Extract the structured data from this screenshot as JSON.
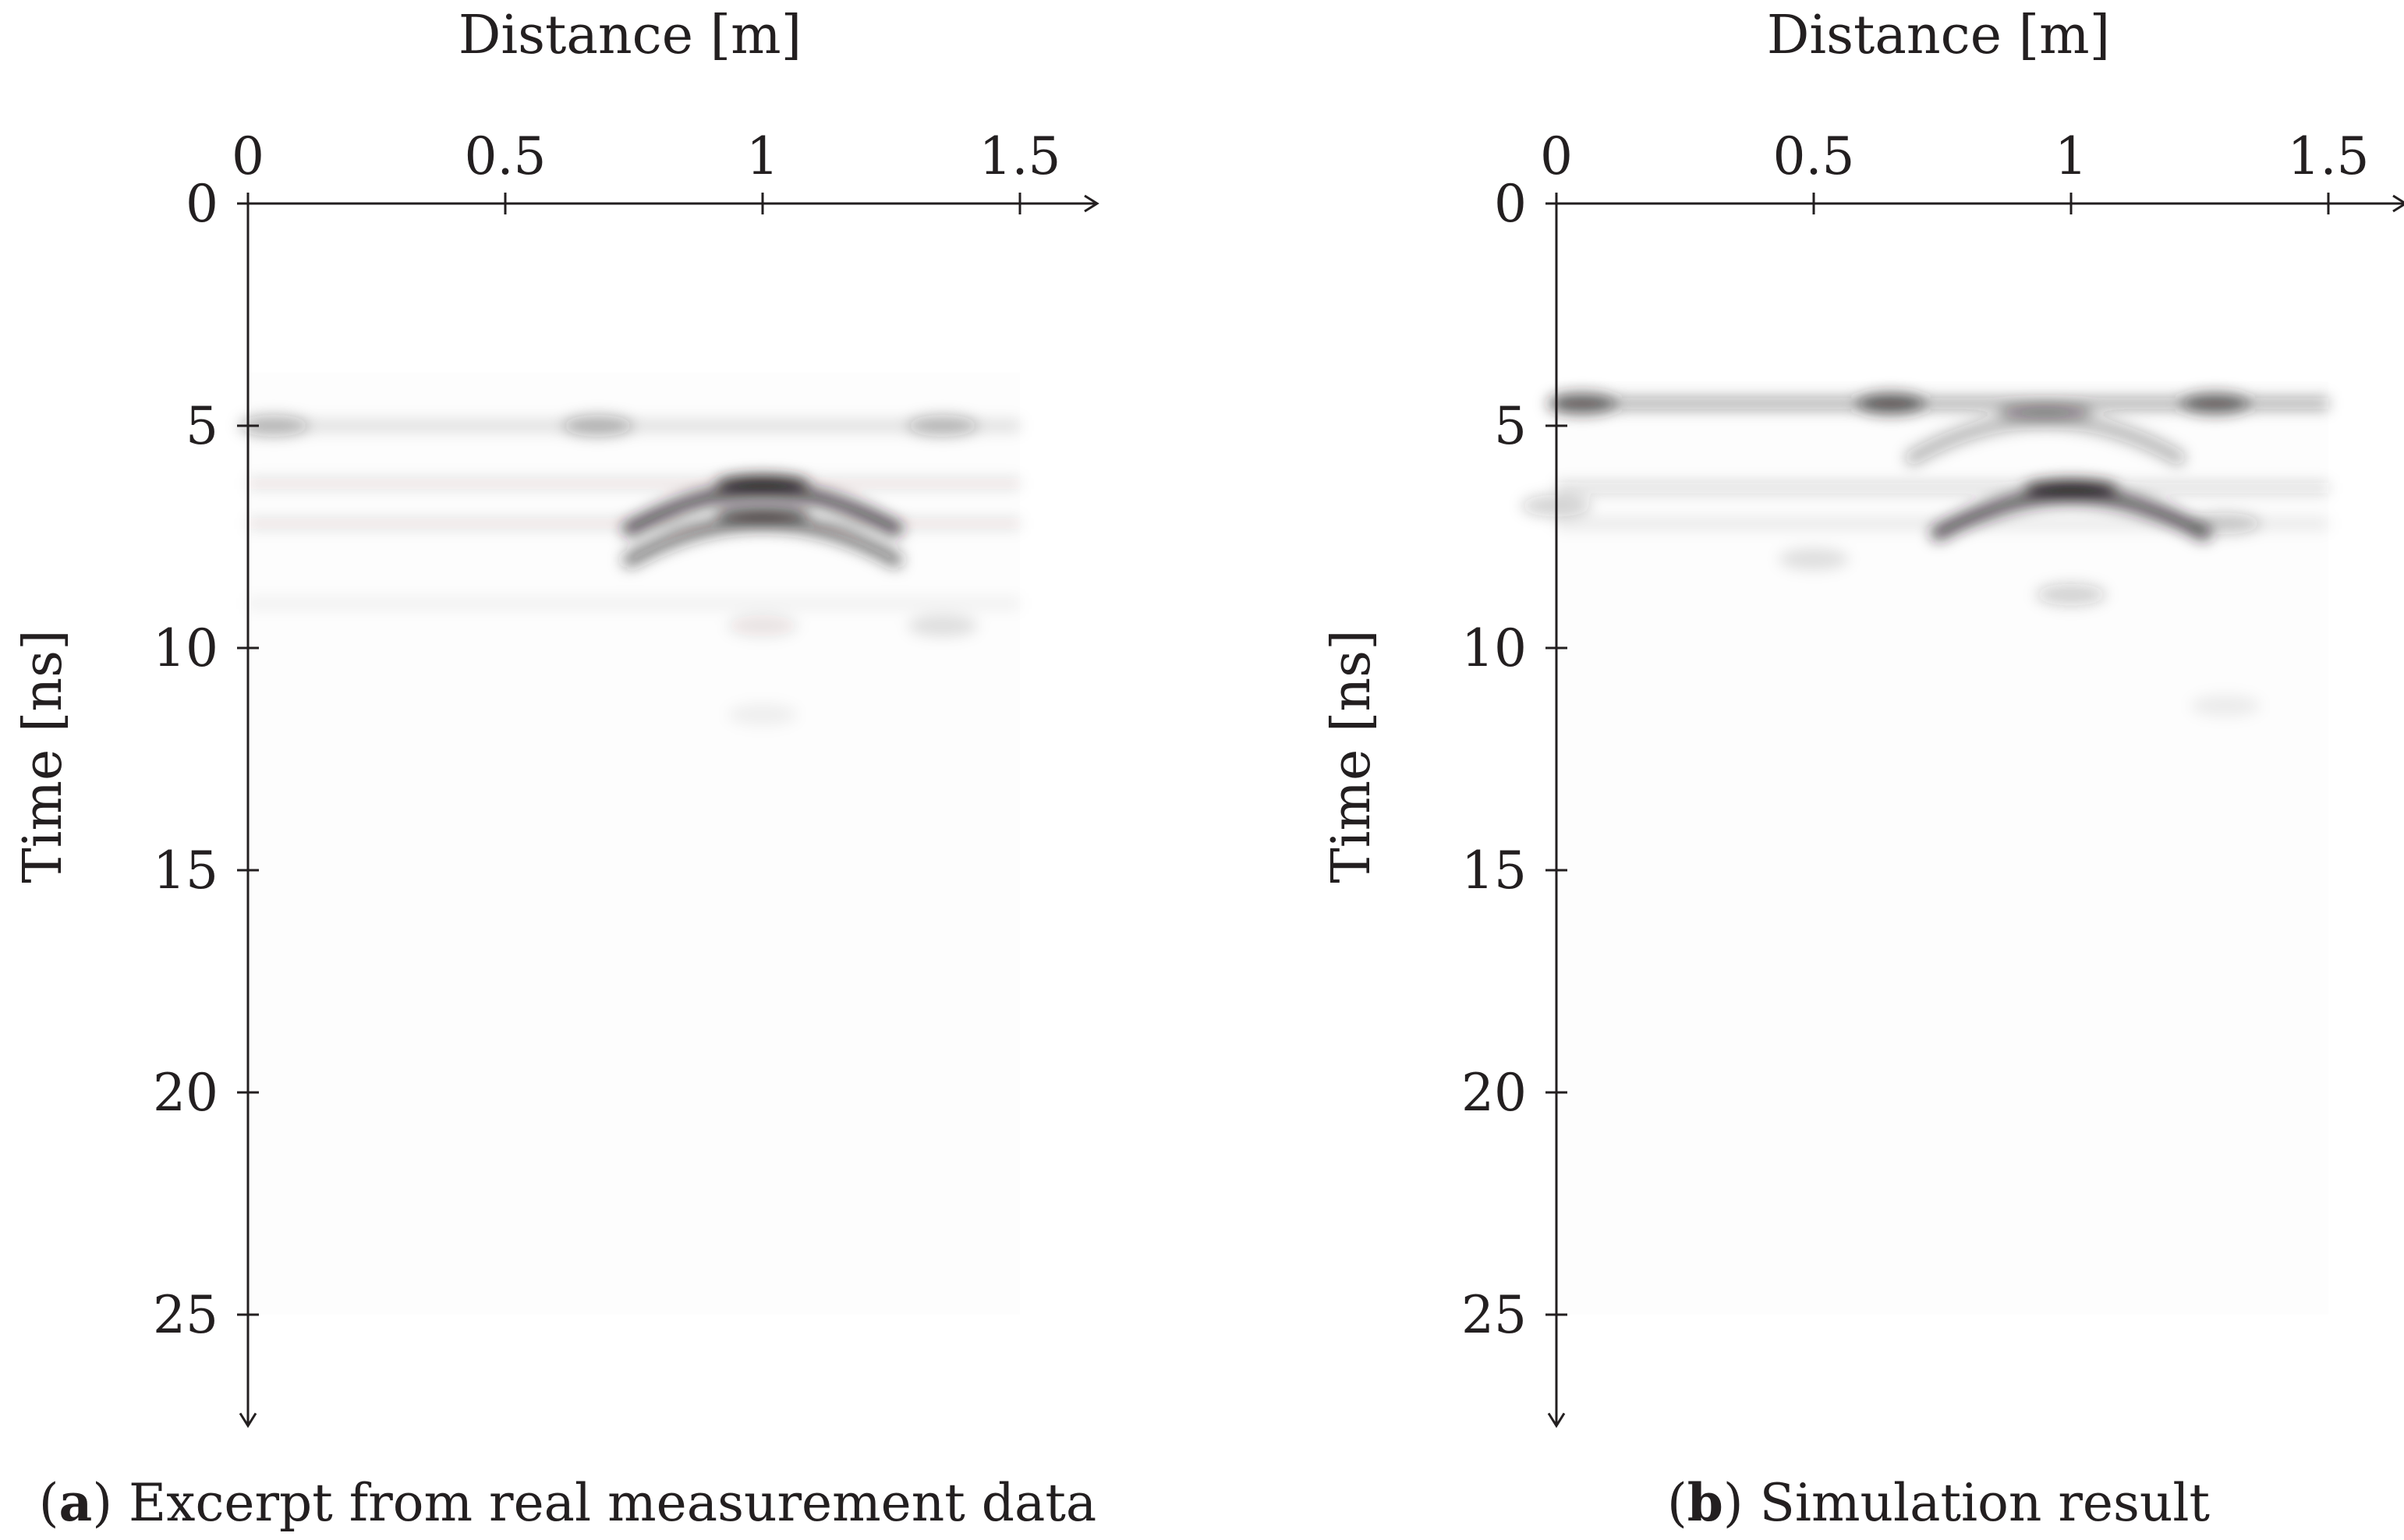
{
  "chart_data": [
    {
      "type": "heatmap",
      "panel_label": "a",
      "caption": "Excerpt from real measurement data",
      "xlabel": "Distance [m]",
      "ylabel": "Time [ns]",
      "xlim": [
        0,
        1.65
      ],
      "ylim": [
        0,
        27.5
      ],
      "x_ticks": [
        0,
        0.5,
        1,
        1.5
      ],
      "x_tick_labels": [
        "0",
        "0.5",
        "1",
        "1.5"
      ],
      "y_ticks": [
        0,
        5,
        10,
        15,
        20,
        25
      ],
      "y_tick_labels": [
        "0",
        "5",
        "10",
        "15",
        "20",
        "25"
      ],
      "data_extent": {
        "x": [
          0,
          1.5
        ],
        "y": [
          3.8,
          25
        ]
      },
      "colormap": "gray (white = low amplitude, black = high amplitude)",
      "features": [
        {
          "kind": "hyperbola",
          "apex_x": 1.0,
          "apex_t": 6.3,
          "intensity": 0.95
        },
        {
          "kind": "hyperbola",
          "apex_x": 1.0,
          "apex_t": 7.0,
          "intensity": 0.7
        },
        {
          "kind": "band",
          "t": 5.0,
          "intensity": 0.12
        },
        {
          "kind": "band",
          "t": 6.3,
          "intensity": 0.1
        },
        {
          "kind": "band",
          "t": 7.2,
          "intensity": 0.1
        },
        {
          "kind": "band",
          "t": 9.0,
          "intensity": 0.05
        },
        {
          "kind": "blob",
          "x": 0.05,
          "t": 5.0,
          "intensity": 0.25
        },
        {
          "kind": "blob",
          "x": 0.68,
          "t": 5.0,
          "intensity": 0.28
        },
        {
          "kind": "blob",
          "x": 1.35,
          "t": 5.0,
          "intensity": 0.25
        },
        {
          "kind": "blob",
          "x": 1.35,
          "t": 9.5,
          "intensity": 0.12
        },
        {
          "kind": "blob",
          "x": 1.0,
          "t": 9.5,
          "intensity": 0.1
        },
        {
          "kind": "blob",
          "x": 1.0,
          "t": 11.5,
          "intensity": 0.06
        }
      ]
    },
    {
      "type": "heatmap",
      "panel_label": "b",
      "caption": "Simulation result",
      "xlabel": "Distance [m]",
      "ylabel": "Time [ns]",
      "xlim": [
        0,
        1.65
      ],
      "ylim": [
        0,
        27.5
      ],
      "x_ticks": [
        0,
        0.5,
        1,
        1.5
      ],
      "x_tick_labels": [
        "0",
        "0.5",
        "1",
        "1.5"
      ],
      "y_ticks": [
        0,
        5,
        10,
        15,
        20,
        25
      ],
      "y_tick_labels": [
        "0",
        "5",
        "10",
        "15",
        "20",
        "25"
      ],
      "data_extent": {
        "x": [
          0,
          1.5
        ],
        "y": [
          4.0,
          25
        ]
      },
      "colormap": "gray (white = low amplitude, black = high amplitude)",
      "features": [
        {
          "kind": "band",
          "t": 4.5,
          "intensity": 0.35
        },
        {
          "kind": "band",
          "t": 6.4,
          "intensity": 0.15
        },
        {
          "kind": "band",
          "t": 7.2,
          "intensity": 0.08
        },
        {
          "kind": "blob",
          "x": 0.05,
          "t": 4.5,
          "intensity": 0.6
        },
        {
          "kind": "blob",
          "x": 0.65,
          "t": 4.5,
          "intensity": 0.65
        },
        {
          "kind": "blob",
          "x": 1.28,
          "t": 4.5,
          "intensity": 0.6
        },
        {
          "kind": "hyperbola",
          "apex_x": 1.0,
          "apex_t": 6.4,
          "intensity": 0.95
        },
        {
          "kind": "hyperbola",
          "apex_x": 0.95,
          "apex_t": 4.7,
          "intensity": 0.4
        },
        {
          "kind": "blob",
          "x": 1.0,
          "t": 8.8,
          "intensity": 0.2
        },
        {
          "kind": "blob",
          "x": 0.5,
          "t": 8.0,
          "intensity": 0.12
        },
        {
          "kind": "blob",
          "x": 1.3,
          "t": 7.2,
          "intensity": 0.2
        },
        {
          "kind": "blob",
          "x": 0.0,
          "t": 6.8,
          "intensity": 0.2
        },
        {
          "kind": "blob",
          "x": 1.3,
          "t": 11.3,
          "intensity": 0.07
        }
      ]
    }
  ]
}
